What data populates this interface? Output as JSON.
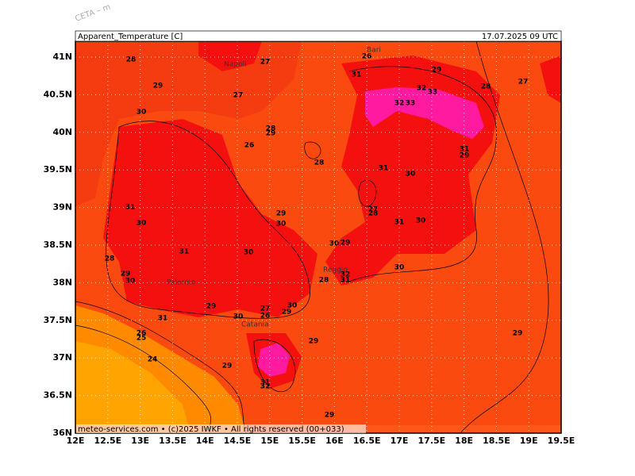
{
  "header": {
    "corner": "CETA – m",
    "title": "Apparent_Temperature [C]",
    "time": "17.07.2025 09 UTC"
  },
  "lat_labels": [
    "41N",
    "40.5N",
    "40N",
    "39.5N",
    "39N",
    "38.5N",
    "38N",
    "37.5N",
    "37N",
    "36.5N",
    "36N"
  ],
  "lon_labels": [
    "12E",
    "12.5E",
    "13E",
    "13.5E",
    "14E",
    "14.5E",
    "15E",
    "15.5E",
    "16E",
    "16.5E",
    "17E",
    "17.5E",
    "18E",
    "18.5E",
    "19E",
    "19.5E"
  ],
  "cities": [
    "Napoli",
    "Bari",
    "Palermo",
    "Catania",
    "Reggio"
  ],
  "contour_labels": [
    28,
    27,
    26,
    29,
    28,
    27,
    29,
    31,
    27,
    32,
    33,
    32,
    33,
    30,
    28,
    29,
    26,
    28,
    31,
    30,
    31,
    29,
    31,
    29,
    30,
    27,
    28,
    31,
    30,
    30,
    28,
    31,
    30,
    30,
    29,
    30,
    29,
    30,
    32,
    31,
    28,
    29,
    27,
    26,
    29,
    30,
    30,
    31,
    26,
    25,
    29,
    29,
    24,
    29,
    31,
    32,
    29
  ],
  "footer": "meteo-services.com • (c)2025 IWKF • All rights reserved (00+033)"
}
